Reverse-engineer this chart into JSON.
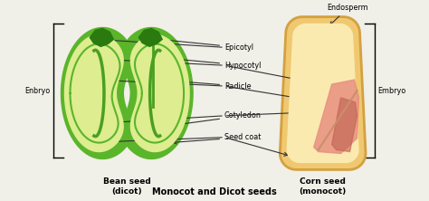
{
  "bg_color": "#f0efe8",
  "title": "Monocot and Dicot seeds",
  "bean_label": "Bean seed\n(dicot)",
  "corn_label": "Corn seed\n(monocot)",
  "embryo_left": "Enbryo",
  "embryo_right": "Embryo",
  "endosperm_label": "Endosperm",
  "bean_outer": "#5ab52a",
  "bean_inner_fill": "#dded90",
  "bean_dark": "#2a7a10",
  "bean_mid": "#4aa020",
  "corn_outer_ec": "#d4a040",
  "corn_outer_fc": "#f0c870",
  "corn_endosperm_fc": "#faeab0",
  "corn_embryo_fc": "#e89080",
  "corn_embryo_dark": "#c06050"
}
